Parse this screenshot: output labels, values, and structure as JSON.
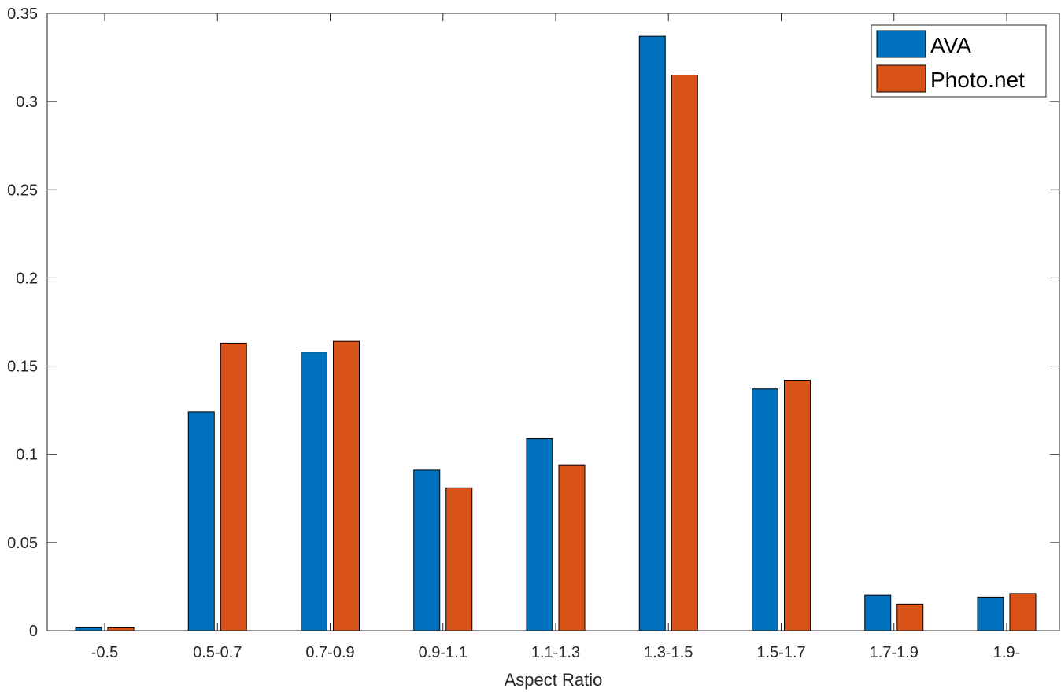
{
  "chart_data": {
    "type": "bar",
    "xlabel": "Aspect Ratio",
    "ylabel": "",
    "title": "",
    "categories": [
      "-0.5",
      "0.5-0.7",
      "0.7-0.9",
      "0.9-1.1",
      "1.1-1.3",
      "1.3-1.5",
      "1.5-1.7",
      "1.7-1.9",
      "1.9-"
    ],
    "series": [
      {
        "name": "AVA",
        "color": "#0072BD",
        "values": [
          0.002,
          0.124,
          0.158,
          0.091,
          0.109,
          0.337,
          0.137,
          0.02,
          0.019
        ]
      },
      {
        "name": "Photo.net",
        "color": "#D95319",
        "values": [
          0.002,
          0.163,
          0.164,
          0.081,
          0.094,
          0.315,
          0.142,
          0.015,
          0.021
        ]
      }
    ],
    "ylim": [
      0,
      0.35
    ],
    "yticks": [
      "0",
      "0.05",
      "0.1",
      "0.15",
      "0.2",
      "0.25",
      "0.3",
      "0.35"
    ],
    "grid": false,
    "legend_position": "top-right"
  }
}
